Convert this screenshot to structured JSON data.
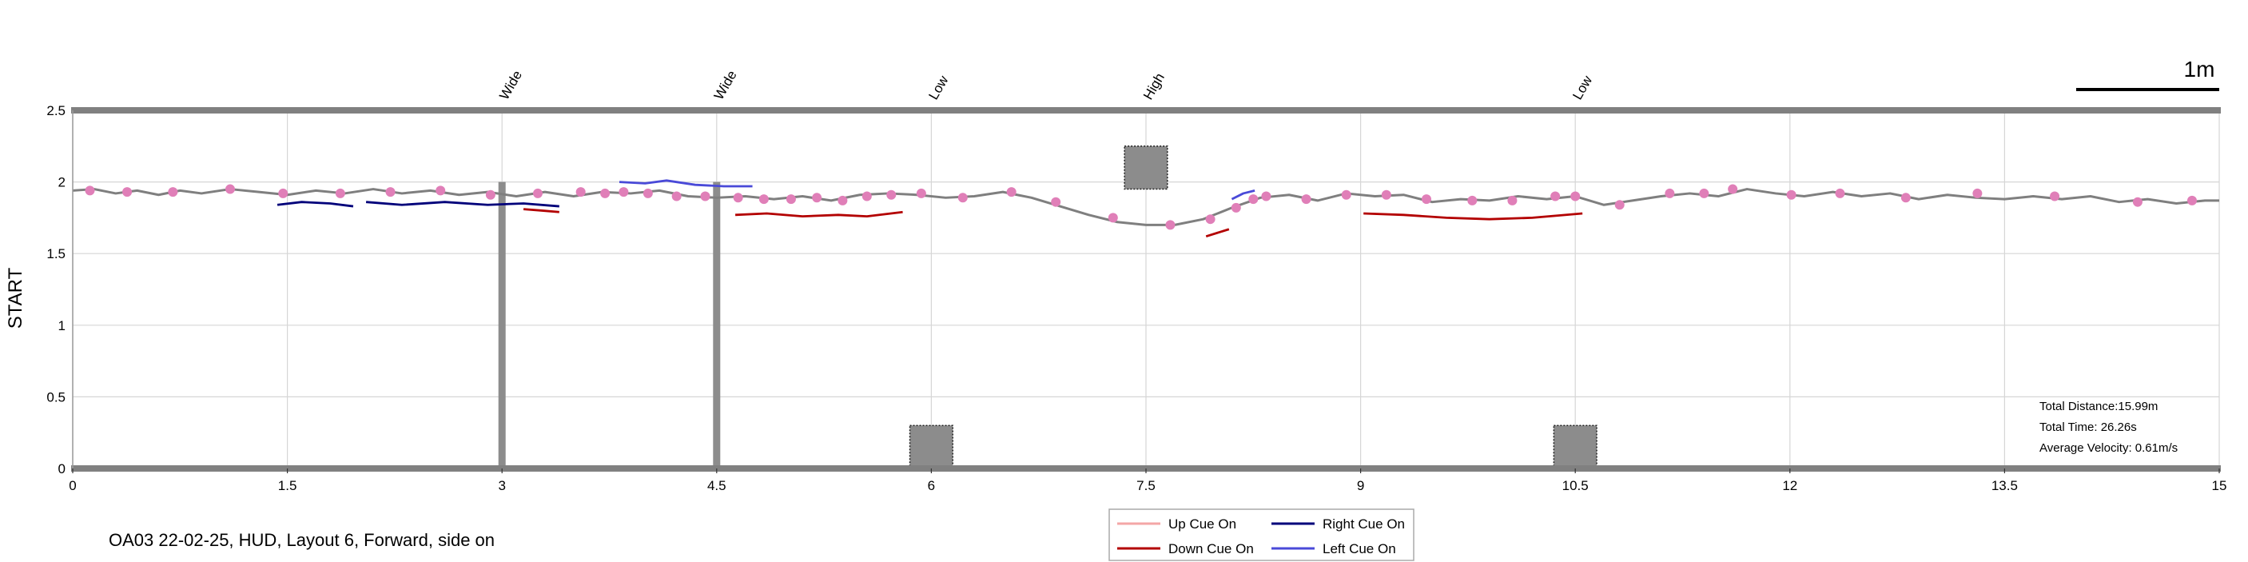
{
  "caption": "OA03 22-02-25, HUD, Layout 6, Forward, side on",
  "scale_label": "1m",
  "stats": {
    "distance": "Total Distance:15.99m",
    "time": "Total Time: 26.26s",
    "velocity": "Average Velocity: 0.61m/s"
  },
  "colors": {
    "path": "#7f7f7f",
    "markers": "#e07fb8",
    "up_cue": "#f4a6a6",
    "down_cue": "#b30000",
    "right_cue": "#00007a",
    "left_cue": "#4a4ad8",
    "obstacle": "#8c8c8c",
    "frame": "#808080"
  },
  "chart_data": {
    "type": "line",
    "title": "",
    "xlabel": "",
    "ylabel": "START",
    "xlim": [
      0,
      15
    ],
    "ylim": [
      0,
      2.5
    ],
    "xticks": [
      "0",
      "1.5",
      "3",
      "4.5",
      "6",
      "7.5",
      "9",
      "10.5",
      "12",
      "13.5",
      "15"
    ],
    "xtick_values": [
      0,
      1.5,
      3,
      4.5,
      6,
      7.5,
      9,
      10.5,
      12,
      13.5,
      15
    ],
    "yticks": [
      "0",
      "0.5",
      "1",
      "1.5",
      "2",
      "2.5"
    ],
    "ytick_values": [
      0,
      0.5,
      1,
      1.5,
      2,
      2.5
    ],
    "grid": true,
    "legend_position": "bottom-center",
    "legend": [
      "Up Cue On",
      "Right Cue On",
      "Down Cue On",
      "Left Cue On"
    ],
    "path": {
      "x": [
        0,
        0.15,
        0.3,
        0.45,
        0.6,
        0.75,
        0.9,
        1.1,
        1.3,
        1.5,
        1.7,
        1.9,
        2.1,
        2.3,
        2.5,
        2.7,
        2.9,
        3.1,
        3.3,
        3.5,
        3.7,
        3.9,
        4.1,
        4.3,
        4.5,
        4.7,
        4.9,
        5.1,
        5.3,
        5.5,
        5.7,
        5.9,
        6.1,
        6.3,
        6.5,
        6.7,
        6.9,
        7.1,
        7.3,
        7.5,
        7.7,
        7.9,
        8.1,
        8.3,
        8.5,
        8.7,
        8.9,
        9.1,
        9.3,
        9.5,
        9.7,
        9.9,
        10.1,
        10.3,
        10.5,
        10.7,
        10.9,
        11.1,
        11.3,
        11.5,
        11.7,
        11.9,
        12.1,
        12.3,
        12.5,
        12.7,
        12.9,
        13.1,
        13.3,
        13.5,
        13.7,
        13.9,
        14.1,
        14.3,
        14.5,
        14.7,
        14.9,
        15
      ],
      "y": [
        1.94,
        1.95,
        1.92,
        1.94,
        1.91,
        1.94,
        1.92,
        1.95,
        1.93,
        1.91,
        1.94,
        1.92,
        1.95,
        1.92,
        1.94,
        1.91,
        1.93,
        1.9,
        1.93,
        1.9,
        1.93,
        1.92,
        1.94,
        1.9,
        1.89,
        1.9,
        1.88,
        1.9,
        1.87,
        1.91,
        1.92,
        1.91,
        1.89,
        1.9,
        1.93,
        1.89,
        1.83,
        1.77,
        1.72,
        1.7,
        1.7,
        1.74,
        1.82,
        1.89,
        1.91,
        1.87,
        1.92,
        1.9,
        1.91,
        1.86,
        1.88,
        1.87,
        1.9,
        1.88,
        1.9,
        1.84,
        1.87,
        1.9,
        1.92,
        1.9,
        1.95,
        1.92,
        1.9,
        1.93,
        1.9,
        1.92,
        1.88,
        1.91,
        1.89,
        1.88,
        1.9,
        1.88,
        1.9,
        1.86,
        1.88,
        1.85,
        1.87,
        1.87
      ]
    },
    "markers": {
      "x": [
        0.12,
        0.38,
        0.7,
        1.1,
        1.47,
        1.87,
        2.22,
        2.57,
        2.92,
        3.25,
        3.55,
        3.72,
        3.85,
        4.02,
        4.22,
        4.42,
        4.65,
        4.83,
        5.02,
        5.2,
        5.38,
        5.55,
        5.72,
        5.93,
        6.22,
        6.56,
        6.87,
        7.27,
        7.67,
        7.95,
        8.13,
        8.25,
        8.34,
        8.62,
        8.9,
        9.18,
        9.46,
        9.78,
        10.06,
        10.36,
        10.5,
        10.81,
        11.16,
        11.4,
        11.6,
        12.01,
        12.35,
        12.81,
        13.31,
        13.85,
        14.43,
        14.81
      ],
      "y": [
        1.94,
        1.93,
        1.93,
        1.95,
        1.92,
        1.92,
        1.93,
        1.94,
        1.91,
        1.92,
        1.93,
        1.92,
        1.93,
        1.92,
        1.9,
        1.9,
        1.89,
        1.88,
        1.88,
        1.89,
        1.87,
        1.9,
        1.91,
        1.92,
        1.89,
        1.93,
        1.86,
        1.75,
        1.7,
        1.74,
        1.82,
        1.88,
        1.9,
        1.88,
        1.91,
        1.91,
        1.88,
        1.87,
        1.87,
        1.9,
        1.9,
        1.84,
        1.92,
        1.92,
        1.95,
        1.91,
        1.92,
        1.89,
        1.92,
        1.9,
        1.86,
        1.87
      ]
    },
    "cue_segments": [
      {
        "cue": "right",
        "x": [
          1.43,
          1.6,
          1.8,
          1.96
        ],
        "y": [
          1.84,
          1.86,
          1.85,
          1.83
        ]
      },
      {
        "cue": "right",
        "x": [
          2.05,
          2.3,
          2.6,
          2.9,
          3.15,
          3.4
        ],
        "y": [
          1.86,
          1.84,
          1.86,
          1.84,
          1.85,
          1.83
        ]
      },
      {
        "cue": "down",
        "x": [
          3.15,
          3.28,
          3.4
        ],
        "y": [
          1.81,
          1.8,
          1.79
        ]
      },
      {
        "cue": "left",
        "x": [
          3.82,
          4.0,
          4.15,
          4.35,
          4.55,
          4.75
        ],
        "y": [
          2.0,
          1.99,
          2.01,
          1.98,
          1.97,
          1.97
        ]
      },
      {
        "cue": "down",
        "x": [
          4.63,
          4.85,
          5.1,
          5.35,
          5.55,
          5.8
        ],
        "y": [
          1.77,
          1.78,
          1.76,
          1.77,
          1.76,
          1.79
        ]
      },
      {
        "cue": "down",
        "x": [
          7.92,
          8.08
        ],
        "y": [
          1.62,
          1.67
        ]
      },
      {
        "cue": "left",
        "x": [
          8.1,
          8.18,
          8.26
        ],
        "y": [
          1.88,
          1.92,
          1.94
        ]
      },
      {
        "cue": "down",
        "x": [
          9.02,
          9.3,
          9.6,
          9.9,
          10.2,
          10.55
        ],
        "y": [
          1.78,
          1.77,
          1.75,
          1.74,
          1.75,
          1.78
        ]
      }
    ],
    "obstacles": [
      {
        "type": "Wide",
        "x": 3.0,
        "y_range": [
          0,
          2
        ]
      },
      {
        "type": "Wide",
        "x": 4.5,
        "y_range": [
          0,
          2
        ]
      },
      {
        "type": "Low",
        "x": 6.0,
        "x_range": [
          5.85,
          6.15
        ],
        "y_range": [
          0,
          0.3
        ]
      },
      {
        "type": "High",
        "x": 7.5,
        "x_range": [
          7.35,
          7.65
        ],
        "y_range": [
          1.95,
          2.25
        ]
      },
      {
        "type": "Low",
        "x": 10.5,
        "x_range": [
          10.35,
          10.65
        ],
        "y_range": [
          0,
          0.3
        ]
      }
    ]
  }
}
